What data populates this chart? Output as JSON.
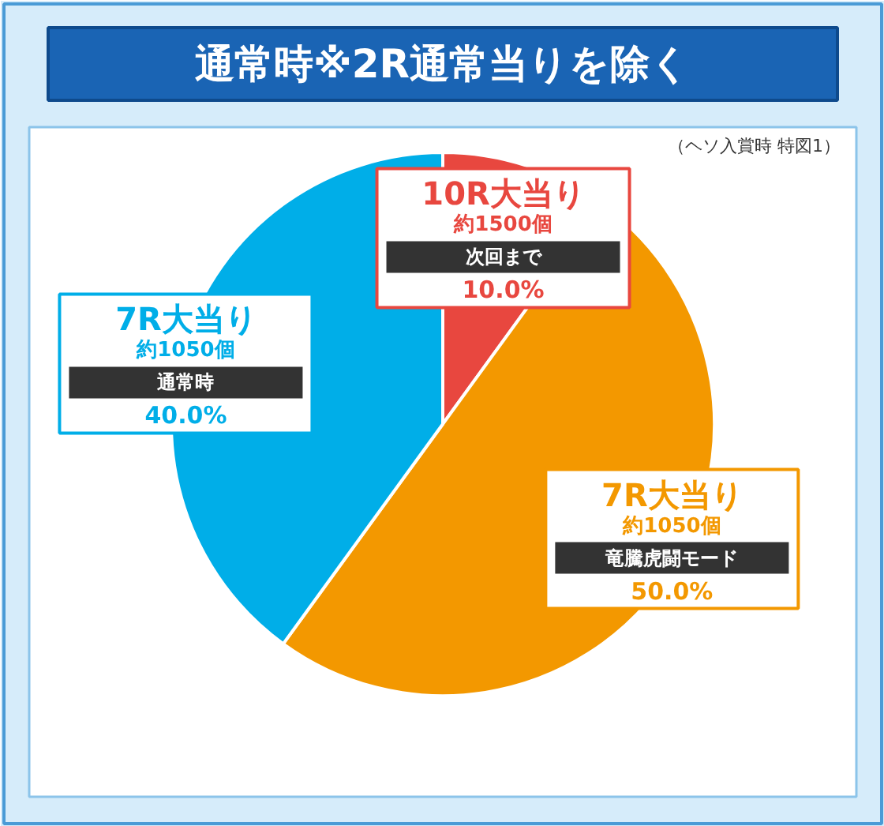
{
  "chart_data": {
    "type": "pie",
    "title": "通常時※2R通常当りを除く",
    "subtitle": "（ヘソ入賞時 特図1）",
    "categories": [
      "10R大当り",
      "7R大当り",
      "7R大当り"
    ],
    "values": [
      10,
      50,
      40
    ],
    "colors": [
      "#e8473f",
      "#f39800",
      "#00aee8"
    ],
    "value_labels": [
      "10.0%",
      "50.0%",
      "40.0%"
    ],
    "annotations": [
      "約1500個",
      "次回まで",
      "約1050個",
      "竜騰虎闘モード",
      "約1050個",
      "通常時"
    ]
  }
}
